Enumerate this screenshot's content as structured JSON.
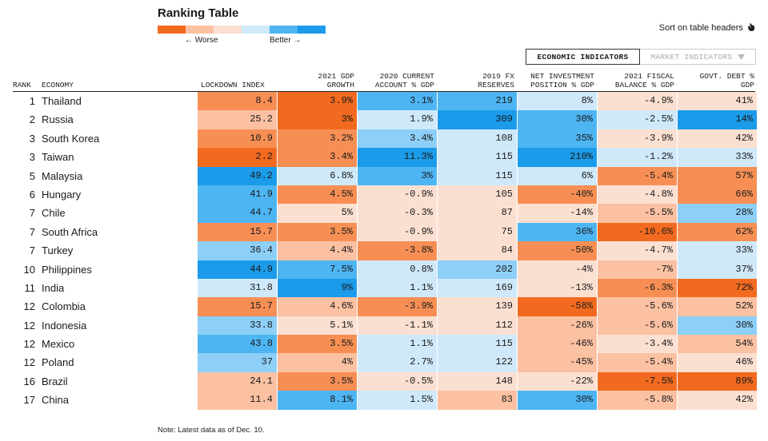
{
  "title": "Ranking Table",
  "legend": {
    "worse": "← Worse",
    "better": "Better →",
    "scale": [
      "#f26a1f",
      "#f78f55",
      "#fbc1a2",
      "#fbe0d1",
      "#cfe9fa",
      "#8dcff7",
      "#4eb5f3",
      "#1b9be9"
    ]
  },
  "sort_hint": "Sort on table headers",
  "toggles": {
    "economic": "ECONOMIC INDICATORS",
    "market": "MARKET INDICATORS"
  },
  "headers": {
    "rank": "RANK",
    "economy": "ECONOMY",
    "lockdown": "LOCKDOWN INDEX",
    "gdp_1": "2021 GDP",
    "gdp_2": "GROWTH",
    "ca_1": "2020 CURRENT",
    "ca_2": "ACCOUNT % GDP",
    "fx_1": "2019 FX",
    "fx_2": "RESERVES",
    "nip_1": "NET INVESTMENT",
    "nip_2": "POSITION % GDP",
    "fb_1": "2021 FISCAL",
    "fb_2": "BALANCE % GDP",
    "debt_1": "GOVT. DEBT %",
    "debt_2": "GDP"
  },
  "note": "Note: Latest data as of Dec. 10.",
  "colors": {
    "o1": "#f26a1f",
    "o2": "#f78f55",
    "o3": "#fbc1a2",
    "o4": "#fbe0d1",
    "b4": "#cfe9fa",
    "b3": "#8dcff7",
    "b2": "#4eb5f3",
    "b1": "#1b9be9"
  },
  "chart_data": {
    "type": "table",
    "title": "Ranking Table",
    "columns": [
      "Lockdown index",
      "2021 GDP growth",
      "2020 current account % GDP",
      "2019 FX reserves",
      "Net investment position % GDP",
      "2021 fiscal balance % GDP",
      "Govt. debt % GDP"
    ],
    "rows": [
      {
        "rank": "1",
        "economy": "Thailand",
        "values": [
          "8.4",
          "3.9%",
          "3.1%",
          "219",
          "8%",
          "-4.9%",
          "41%"
        ],
        "shades": [
          "o2",
          "o1",
          "b2",
          "b2",
          "b4",
          "o4",
          "o4"
        ]
      },
      {
        "rank": "2",
        "economy": "Russia",
        "values": [
          "25.2",
          "3%",
          "1.9%",
          "309",
          "30%",
          "-2.5%",
          "14%"
        ],
        "shades": [
          "o3",
          "o1",
          "b4",
          "b1",
          "b2",
          "b4",
          "b1"
        ]
      },
      {
        "rank": "3",
        "economy": "South Korea",
        "values": [
          "10.9",
          "3.2%",
          "3.4%",
          "108",
          "35%",
          "-3.9%",
          "42%"
        ],
        "shades": [
          "o2",
          "o2",
          "b3",
          "b4",
          "b2",
          "o4",
          "o4"
        ]
      },
      {
        "rank": "3",
        "economy": "Taiwan",
        "values": [
          "2.2",
          "3.4%",
          "11.3%",
          "115",
          "210%",
          "-1.2%",
          "33%"
        ],
        "shades": [
          "o1",
          "o2",
          "b1",
          "b4",
          "b1",
          "b4",
          "b4"
        ]
      },
      {
        "rank": "5",
        "economy": "Malaysia",
        "values": [
          "49.2",
          "6.8%",
          "3%",
          "115",
          "6%",
          "-5.4%",
          "57%"
        ],
        "shades": [
          "b1",
          "b4",
          "b2",
          "b4",
          "b4",
          "o2",
          "o2"
        ]
      },
      {
        "rank": "6",
        "economy": "Hungary",
        "values": [
          "41.9",
          "4.5%",
          "-0.9%",
          "105",
          "-40%",
          "-4.8%",
          "66%"
        ],
        "shades": [
          "b2",
          "o2",
          "o4",
          "o4",
          "o2",
          "o4",
          "o2"
        ]
      },
      {
        "rank": "7",
        "economy": "Chile",
        "values": [
          "44.7",
          "5%",
          "-0.3%",
          "87",
          "-14%",
          "-5.5%",
          "28%"
        ],
        "shades": [
          "b2",
          "o4",
          "o4",
          "o4",
          "o4",
          "o3",
          "b3"
        ]
      },
      {
        "rank": "7",
        "economy": "South Africa",
        "values": [
          "15.7",
          "3.5%",
          "-0.9%",
          "75",
          "36%",
          "-10.6%",
          "62%"
        ],
        "shades": [
          "o2",
          "o2",
          "o4",
          "o4",
          "b2",
          "o1",
          "o2"
        ]
      },
      {
        "rank": "7",
        "economy": "Turkey",
        "values": [
          "36.4",
          "4.4%",
          "-3.8%",
          "84",
          "-50%",
          "-4.7%",
          "33%"
        ],
        "shades": [
          "b3",
          "o3",
          "o2",
          "o4",
          "o2",
          "o4",
          "b4"
        ]
      },
      {
        "rank": "10",
        "economy": "Philippines",
        "values": [
          "44.9",
          "7.5%",
          "0.8%",
          "202",
          "-4%",
          "-7%",
          "37%"
        ],
        "shades": [
          "b1",
          "b2",
          "b4",
          "b3",
          "o4",
          "o3",
          "b4"
        ]
      },
      {
        "rank": "11",
        "economy": "India",
        "values": [
          "31.8",
          "9%",
          "1.1%",
          "169",
          "-13%",
          "-6.3%",
          "72%"
        ],
        "shades": [
          "b4",
          "b1",
          "b4",
          "b4",
          "o4",
          "o2",
          "o1"
        ]
      },
      {
        "rank": "12",
        "economy": "Colombia",
        "values": [
          "15.7",
          "4.6%",
          "-3.9%",
          "139",
          "-58%",
          "-5.6%",
          "52%"
        ],
        "shades": [
          "o2",
          "o3",
          "o2",
          "o4",
          "o1",
          "o3",
          "o3"
        ]
      },
      {
        "rank": "12",
        "economy": "Indonesia",
        "values": [
          "33.8",
          "5.1%",
          "-1.1%",
          "112",
          "-26%",
          "-5.6%",
          "30%"
        ],
        "shades": [
          "b3",
          "o4",
          "o4",
          "o4",
          "o3",
          "o3",
          "b3"
        ]
      },
      {
        "rank": "12",
        "economy": "Mexico",
        "values": [
          "43.8",
          "3.5%",
          "1.1%",
          "115",
          "-46%",
          "-3.4%",
          "54%"
        ],
        "shades": [
          "b2",
          "o2",
          "b4",
          "b4",
          "o3",
          "o4",
          "o3"
        ]
      },
      {
        "rank": "12",
        "economy": "Poland",
        "values": [
          "37",
          "4%",
          "2.7%",
          "122",
          "-45%",
          "-5.4%",
          "46%"
        ],
        "shades": [
          "b3",
          "o3",
          "b4",
          "b4",
          "o3",
          "o3",
          "o4"
        ]
      },
      {
        "rank": "16",
        "economy": "Brazil",
        "values": [
          "24.1",
          "3.5%",
          "-0.5%",
          "148",
          "-22%",
          "-7.5%",
          "89%"
        ],
        "shades": [
          "o3",
          "o2",
          "o4",
          "o4",
          "o4",
          "o1",
          "o1"
        ]
      },
      {
        "rank": "17",
        "economy": "China",
        "values": [
          "11.4",
          "8.1%",
          "1.5%",
          "83",
          "30%",
          "-5.8%",
          "42%"
        ],
        "shades": [
          "o3",
          "b2",
          "b4",
          "o3",
          "b2",
          "o3",
          "o4"
        ]
      }
    ]
  }
}
